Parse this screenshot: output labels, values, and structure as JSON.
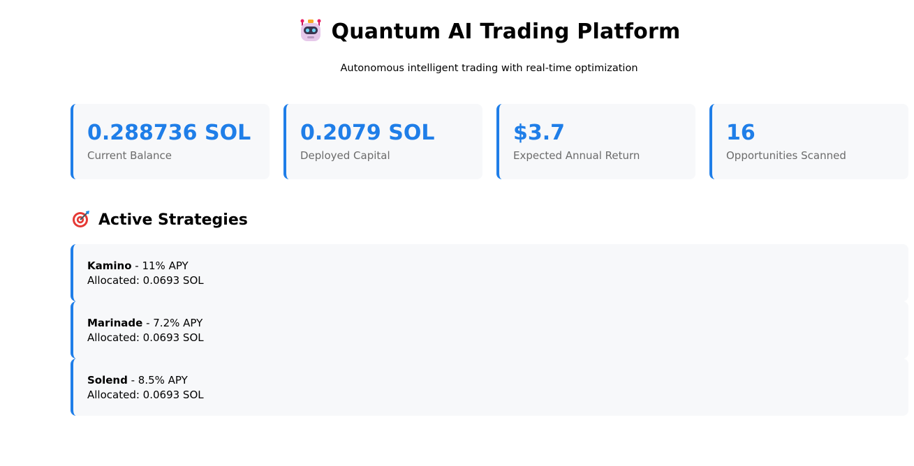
{
  "header": {
    "title": "Quantum AI Trading Platform",
    "title_icon": "robot-icon",
    "subtitle": "Autonomous intelligent trading with real-time optimization"
  },
  "stats": [
    {
      "value": "0.288736 SOL",
      "label": "Current Balance"
    },
    {
      "value": "0.2079 SOL",
      "label": "Deployed Capital"
    },
    {
      "value": "$3.7",
      "label": "Expected Annual Return"
    },
    {
      "value": "16",
      "label": "Opportunities Scanned"
    }
  ],
  "strategies_section": {
    "title": "Active Strategies",
    "title_icon": "target-icon",
    "items": [
      {
        "name": "Kamino",
        "apy": " - 11% APY",
        "allocation": "Allocated: 0.0693 SOL"
      },
      {
        "name": "Marinade",
        "apy": " - 7.2% APY",
        "allocation": "Allocated: 0.0693 SOL"
      },
      {
        "name": "Solend",
        "apy": " - 8.5% APY",
        "allocation": "Allocated: 0.0693 SOL"
      }
    ]
  },
  "colors": {
    "accent": "#1f7ee8",
    "card_bg": "#f7f8fa",
    "label": "#6b6b6b"
  }
}
